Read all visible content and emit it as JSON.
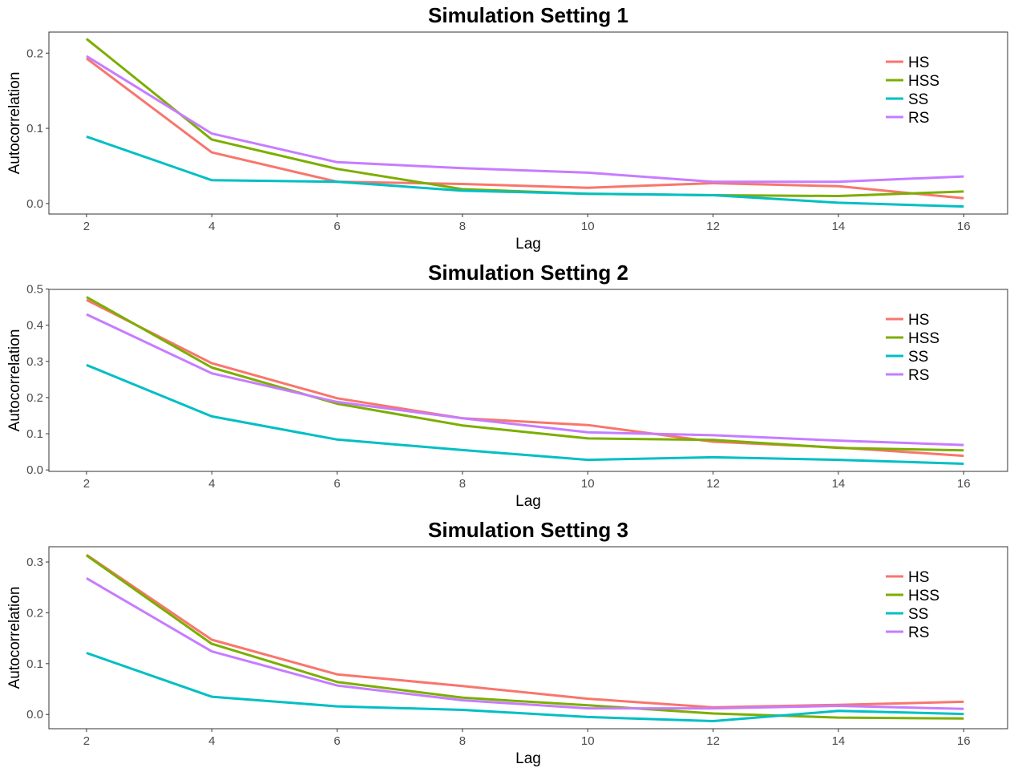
{
  "chart_data": [
    {
      "type": "line",
      "title": "Simulation Setting 1",
      "xlabel": "Lag",
      "ylabel": "Autocorrelation",
      "x": [
        2,
        4,
        6,
        8,
        10,
        12,
        14,
        16
      ],
      "xticks": [
        2,
        4,
        6,
        8,
        10,
        12,
        14,
        16
      ],
      "xlim": [
        1.4,
        16.7
      ],
      "yticks": [
        0.0,
        0.1,
        0.2
      ],
      "ytick_labels": [
        "0.0",
        "0.1",
        "0.2"
      ],
      "ylim": [
        -0.014,
        0.228
      ],
      "grid": false,
      "legend": "top-right",
      "series": [
        {
          "name": "HS",
          "color": "#F8766D",
          "values": [
            0.193,
            0.068,
            0.029,
            0.026,
            0.021,
            0.027,
            0.023,
            0.007
          ]
        },
        {
          "name": "HSS",
          "color": "#7CAE00",
          "values": [
            0.219,
            0.085,
            0.046,
            0.019,
            0.013,
            0.011,
            0.01,
            0.016
          ]
        },
        {
          "name": "SS",
          "color": "#00BFC4",
          "values": [
            0.089,
            0.031,
            0.029,
            0.017,
            0.013,
            0.011,
            0.001,
            -0.004
          ]
        },
        {
          "name": "RS",
          "color": "#C77CFF",
          "values": [
            0.196,
            0.093,
            0.055,
            0.047,
            0.041,
            0.029,
            0.029,
            0.036
          ]
        }
      ]
    },
    {
      "type": "line",
      "title": "Simulation Setting 2",
      "xlabel": "Lag",
      "ylabel": "Autocorrelation",
      "x": [
        2,
        4,
        6,
        8,
        10,
        12,
        14,
        16
      ],
      "xticks": [
        2,
        4,
        6,
        8,
        10,
        12,
        14,
        16
      ],
      "xlim": [
        1.4,
        16.7
      ],
      "yticks": [
        0.0,
        0.1,
        0.2,
        0.3,
        0.4,
        0.5
      ],
      "ytick_labels": [
        "0.0",
        "0.1",
        "0.2",
        "0.3",
        "0.4",
        "0.5"
      ],
      "ylim": [
        -0.004,
        0.499
      ],
      "grid": false,
      "legend": "top-right",
      "series": [
        {
          "name": "HS",
          "color": "#F8766D",
          "values": [
            0.47,
            0.295,
            0.198,
            0.143,
            0.124,
            0.078,
            0.062,
            0.039
          ]
        },
        {
          "name": "HSS",
          "color": "#7CAE00",
          "values": [
            0.478,
            0.283,
            0.183,
            0.123,
            0.087,
            0.083,
            0.061,
            0.054
          ]
        },
        {
          "name": "SS",
          "color": "#00BFC4",
          "values": [
            0.29,
            0.148,
            0.084,
            0.055,
            0.028,
            0.035,
            0.028,
            0.017
          ]
        },
        {
          "name": "RS",
          "color": "#C77CFF",
          "values": [
            0.43,
            0.267,
            0.188,
            0.143,
            0.104,
            0.096,
            0.081,
            0.069
          ]
        }
      ]
    },
    {
      "type": "line",
      "title": "Simulation Setting 3",
      "xlabel": "Lag",
      "ylabel": "Autocorrelation",
      "x": [
        2,
        4,
        6,
        8,
        10,
        12,
        14,
        16
      ],
      "xticks": [
        2,
        4,
        6,
        8,
        10,
        12,
        14,
        16
      ],
      "xlim": [
        1.4,
        16.7
      ],
      "yticks": [
        0.0,
        0.1,
        0.2,
        0.3
      ],
      "ytick_labels": [
        "0.0",
        "0.1",
        "0.2",
        "0.3"
      ],
      "ylim": [
        -0.028,
        0.33
      ],
      "grid": false,
      "legend": "top-right",
      "series": [
        {
          "name": "HS",
          "color": "#F8766D",
          "values": [
            0.314,
            0.147,
            0.079,
            0.056,
            0.031,
            0.014,
            0.019,
            0.025
          ]
        },
        {
          "name": "HSS",
          "color": "#7CAE00",
          "values": [
            0.313,
            0.139,
            0.064,
            0.033,
            0.018,
            0.002,
            -0.006,
            -0.008
          ]
        },
        {
          "name": "SS",
          "color": "#00BFC4",
          "values": [
            0.121,
            0.035,
            0.016,
            0.009,
            -0.005,
            -0.013,
            0.007,
            0.001
          ]
        },
        {
          "name": "RS",
          "color": "#C77CFF",
          "values": [
            0.268,
            0.124,
            0.057,
            0.028,
            0.012,
            0.012,
            0.017,
            0.011
          ]
        }
      ]
    }
  ]
}
